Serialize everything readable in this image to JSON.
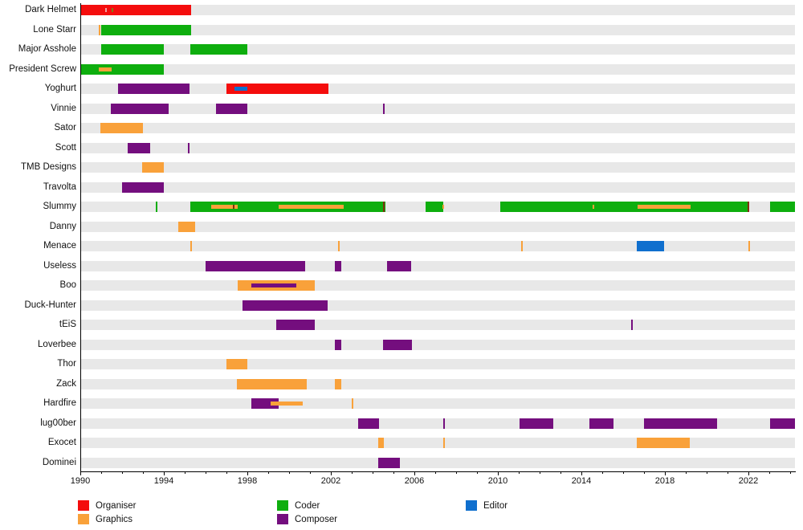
{
  "chart_data": {
    "type": "gantt-timeline",
    "title": "",
    "x_axis": {
      "min": 1990,
      "max": 2024.3,
      "minor_tick_every": 1,
      "label_ticks": [
        1990,
        1994,
        1998,
        2002,
        2006,
        2010,
        2014,
        2018,
        2022
      ]
    },
    "roles": {
      "Organiser": "#f40d0d",
      "Graphics": "#f9a13a",
      "Coder": "#0eae0e",
      "Composer": "#740e7e",
      "Editor": "#0f6fce",
      "mark-dark": "#803010",
      "mark-pink": "#f2a3a3",
      "mark-olive": "#808012"
    },
    "legend": [
      {
        "label": "Organiser",
        "role": "Organiser"
      },
      {
        "label": "Graphics",
        "role": "Graphics"
      },
      {
        "label": "Coder",
        "role": "Coder"
      },
      {
        "label": "Composer",
        "role": "Composer"
      },
      {
        "label": "Editor",
        "role": "Editor"
      }
    ],
    "rows": [
      {
        "label": "Dark Helmet",
        "segments": [
          {
            "role": "Organiser",
            "start": 1990.0,
            "end": 1995.3,
            "layer": "base"
          },
          {
            "role": "mark-pink",
            "start": 1991.2,
            "end": 1991.2,
            "layer": "tick-small"
          },
          {
            "role": "mark-olive",
            "start": 1991.5,
            "end": 1991.5,
            "layer": "tick-small"
          }
        ]
      },
      {
        "label": "Lone Starr",
        "segments": [
          {
            "role": "Graphics",
            "start": 1990.9,
            "end": 1990.9,
            "layer": "tick"
          },
          {
            "role": "Coder",
            "start": 1991.0,
            "end": 1995.3,
            "layer": "base"
          }
        ]
      },
      {
        "label": "Major Asshole",
        "segments": [
          {
            "role": "Coder",
            "start": 1991.0,
            "end": 1994.0,
            "layer": "base"
          },
          {
            "role": "Coder",
            "start": 1995.25,
            "end": 1998.0,
            "layer": "base"
          }
        ]
      },
      {
        "label": "President Screw",
        "segments": [
          {
            "role": "Coder",
            "start": 1990.0,
            "end": 1994.0,
            "layer": "base"
          },
          {
            "role": "Graphics",
            "start": 1990.9,
            "end": 1991.5,
            "layer": "overlay"
          }
        ]
      },
      {
        "label": "Yoghurt",
        "segments": [
          {
            "role": "Composer",
            "start": 1991.8,
            "end": 1995.25,
            "layer": "base"
          },
          {
            "role": "Organiser",
            "start": 1997.0,
            "end": 2001.9,
            "layer": "base"
          },
          {
            "role": "Editor",
            "start": 1997.4,
            "end": 1998.0,
            "layer": "overlay"
          }
        ]
      },
      {
        "label": "Vinnie",
        "segments": [
          {
            "role": "Composer",
            "start": 1991.45,
            "end": 1994.25,
            "layer": "base"
          },
          {
            "role": "Composer",
            "start": 1996.5,
            "end": 1998.0,
            "layer": "base"
          },
          {
            "role": "Composer",
            "start": 2004.5,
            "end": 2004.5,
            "layer": "tick"
          }
        ]
      },
      {
        "label": "Sator",
        "segments": [
          {
            "role": "Graphics",
            "start": 1990.95,
            "end": 1993.0,
            "layer": "base"
          }
        ]
      },
      {
        "label": "Scott",
        "segments": [
          {
            "role": "Composer",
            "start": 1992.25,
            "end": 1993.35,
            "layer": "base"
          },
          {
            "role": "Composer",
            "start": 1995.15,
            "end": 1995.15,
            "layer": "tick"
          }
        ]
      },
      {
        "label": "TMB Designs",
        "segments": [
          {
            "role": "Graphics",
            "start": 1992.95,
            "end": 1994.0,
            "layer": "base"
          }
        ]
      },
      {
        "label": "Travolta",
        "segments": [
          {
            "role": "Composer",
            "start": 1992.0,
            "end": 1994.0,
            "layer": "base"
          }
        ]
      },
      {
        "label": "Slummy",
        "segments": [
          {
            "role": "Coder",
            "start": 1993.6,
            "end": 1993.6,
            "layer": "tick"
          },
          {
            "role": "Coder",
            "start": 1995.25,
            "end": 2004.6,
            "layer": "base"
          },
          {
            "role": "Graphics",
            "start": 1996.25,
            "end": 1997.55,
            "layer": "overlay"
          },
          {
            "role": "mark-dark",
            "start": 1997.3,
            "end": 1997.3,
            "layer": "tick-small"
          },
          {
            "role": "Graphics",
            "start": 1999.5,
            "end": 2002.6,
            "layer": "overlay"
          },
          {
            "role": "mark-dark",
            "start": 2004.5,
            "end": 2004.5,
            "layer": "tick"
          },
          {
            "role": "Coder",
            "start": 2006.55,
            "end": 2007.4,
            "layer": "base"
          },
          {
            "role": "Graphics",
            "start": 2007.35,
            "end": 2007.35,
            "layer": "tick-small"
          },
          {
            "role": "Coder",
            "start": 2010.1,
            "end": 2022.0,
            "layer": "base"
          },
          {
            "role": "Graphics",
            "start": 2014.55,
            "end": 2014.55,
            "layer": "tick-small"
          },
          {
            "role": "Graphics",
            "start": 2016.7,
            "end": 2019.25,
            "layer": "overlay"
          },
          {
            "role": "mark-dark",
            "start": 2021.95,
            "end": 2021.95,
            "layer": "tick"
          },
          {
            "role": "Coder",
            "start": 2023.05,
            "end": 2024.25,
            "layer": "base"
          }
        ]
      },
      {
        "label": "Danny",
        "segments": [
          {
            "role": "Graphics",
            "start": 1994.7,
            "end": 1995.5,
            "layer": "base"
          }
        ]
      },
      {
        "label": "Menace",
        "segments": [
          {
            "role": "Graphics",
            "start": 1995.25,
            "end": 1995.25,
            "layer": "tick"
          },
          {
            "role": "Graphics",
            "start": 2002.35,
            "end": 2002.35,
            "layer": "tick"
          },
          {
            "role": "Graphics",
            "start": 2011.1,
            "end": 2011.1,
            "layer": "tick"
          },
          {
            "role": "Editor",
            "start": 2016.65,
            "end": 2017.95,
            "layer": "base"
          },
          {
            "role": "Graphics",
            "start": 2022.0,
            "end": 2022.0,
            "layer": "tick"
          }
        ]
      },
      {
        "label": "Useless",
        "segments": [
          {
            "role": "Composer",
            "start": 1996.0,
            "end": 2000.75,
            "layer": "base"
          },
          {
            "role": "Composer",
            "start": 2002.2,
            "end": 2002.5,
            "layer": "base"
          },
          {
            "role": "Composer",
            "start": 2004.7,
            "end": 2005.85,
            "layer": "base"
          }
        ]
      },
      {
        "label": "Boo",
        "segments": [
          {
            "role": "Graphics",
            "start": 1997.55,
            "end": 2001.25,
            "layer": "base"
          },
          {
            "role": "Composer",
            "start": 1998.2,
            "end": 2000.35,
            "layer": "overlay"
          }
        ]
      },
      {
        "label": "Duck-Hunter",
        "segments": [
          {
            "role": "Composer",
            "start": 1997.75,
            "end": 2001.85,
            "layer": "base"
          }
        ]
      },
      {
        "label": "tEiS",
        "segments": [
          {
            "role": "Composer",
            "start": 1999.4,
            "end": 2001.25,
            "layer": "base"
          },
          {
            "role": "Composer",
            "start": 2016.4,
            "end": 2016.4,
            "layer": "tick"
          }
        ]
      },
      {
        "label": "Loverbee",
        "segments": [
          {
            "role": "Composer",
            "start": 2002.2,
            "end": 2002.5,
            "layer": "base"
          },
          {
            "role": "Composer",
            "start": 2004.5,
            "end": 2005.9,
            "layer": "base"
          }
        ]
      },
      {
        "label": "Thor",
        "segments": [
          {
            "role": "Graphics",
            "start": 1997.0,
            "end": 1998.0,
            "layer": "base"
          }
        ]
      },
      {
        "label": "Zack",
        "segments": [
          {
            "role": "Graphics",
            "start": 1997.5,
            "end": 2000.85,
            "layer": "base"
          },
          {
            "role": "Graphics",
            "start": 2002.2,
            "end": 2002.5,
            "layer": "base"
          }
        ]
      },
      {
        "label": "Hardfire",
        "segments": [
          {
            "role": "Composer",
            "start": 1998.2,
            "end": 1999.5,
            "layer": "base"
          },
          {
            "role": "Graphics",
            "start": 1999.1,
            "end": 2000.65,
            "layer": "overlay"
          },
          {
            "role": "Graphics",
            "start": 2003.0,
            "end": 2003.0,
            "layer": "tick"
          }
        ]
      },
      {
        "label": "lug00ber",
        "segments": [
          {
            "role": "Composer",
            "start": 2003.3,
            "end": 2004.3,
            "layer": "base"
          },
          {
            "role": "Composer",
            "start": 2007.4,
            "end": 2007.4,
            "layer": "tick"
          },
          {
            "role": "Composer",
            "start": 2011.05,
            "end": 2012.65,
            "layer": "base"
          },
          {
            "role": "Composer",
            "start": 2014.4,
            "end": 2015.55,
            "layer": "base"
          },
          {
            "role": "Composer",
            "start": 2017.0,
            "end": 2020.5,
            "layer": "base"
          },
          {
            "role": "Composer",
            "start": 2023.05,
            "end": 2024.25,
            "layer": "base"
          }
        ]
      },
      {
        "label": "Exocet",
        "segments": [
          {
            "role": "Graphics",
            "start": 2004.25,
            "end": 2004.55,
            "layer": "base"
          },
          {
            "role": "Graphics",
            "start": 2007.4,
            "end": 2007.4,
            "layer": "tick"
          },
          {
            "role": "Graphics",
            "start": 2016.65,
            "end": 2019.2,
            "layer": "base"
          }
        ]
      },
      {
        "label": "Dominei",
        "segments": [
          {
            "role": "Composer",
            "start": 2004.25,
            "end": 2005.3,
            "layer": "base"
          }
        ]
      }
    ]
  }
}
